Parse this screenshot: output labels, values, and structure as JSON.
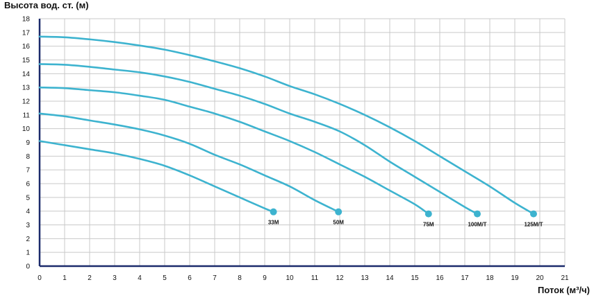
{
  "chart_data": {
    "type": "line",
    "ylabel": "Высота вод. ст. (м)",
    "xlabel": "Поток (м³/ч)",
    "xlim": [
      0,
      21
    ],
    "ylim": [
      0,
      18
    ],
    "x_ticks": [
      0,
      1,
      2,
      3,
      4,
      5,
      6,
      7,
      8,
      9,
      10,
      11,
      12,
      13,
      14,
      15,
      16,
      17,
      18,
      19,
      20,
      21
    ],
    "y_ticks": [
      0,
      1,
      2,
      3,
      4,
      5,
      6,
      7,
      8,
      9,
      10,
      11,
      12,
      13,
      14,
      15,
      16,
      17,
      18
    ],
    "grid": true,
    "colors": {
      "curve": "#3db3cf",
      "axis": "#1b2a6b",
      "grid": "#c9c9c9"
    },
    "series": [
      {
        "name": "33M",
        "x": [
          0,
          1,
          2,
          3,
          4,
          5,
          6,
          7,
          8,
          9,
          9.35
        ],
        "y": [
          9.1,
          8.8,
          8.5,
          8.2,
          7.8,
          7.3,
          6.6,
          5.8,
          5.0,
          4.2,
          3.95
        ]
      },
      {
        "name": "50M",
        "x": [
          0,
          1,
          2,
          3,
          4,
          5,
          6,
          7,
          8,
          9,
          10,
          11,
          11.95
        ],
        "y": [
          11.1,
          10.9,
          10.6,
          10.3,
          9.95,
          9.5,
          8.9,
          8.1,
          7.4,
          6.6,
          5.8,
          4.8,
          3.95
        ]
      },
      {
        "name": "75M",
        "x": [
          0,
          1,
          2,
          3,
          4,
          5,
          6,
          7,
          8,
          9,
          10,
          11,
          12,
          13,
          14,
          15,
          15.55
        ],
        "y": [
          13.0,
          12.95,
          12.8,
          12.65,
          12.4,
          12.1,
          11.6,
          11.1,
          10.5,
          9.8,
          9.1,
          8.3,
          7.4,
          6.5,
          5.5,
          4.5,
          3.8
        ]
      },
      {
        "name": "100M/T",
        "x": [
          0,
          1,
          2,
          3,
          4,
          5,
          6,
          7,
          8,
          9,
          10,
          11,
          12,
          13,
          14,
          15,
          16,
          17,
          17.5
        ],
        "y": [
          14.7,
          14.65,
          14.5,
          14.3,
          14.1,
          13.8,
          13.4,
          12.9,
          12.4,
          11.8,
          11.1,
          10.5,
          9.8,
          8.8,
          7.6,
          6.5,
          5.4,
          4.3,
          3.8
        ]
      },
      {
        "name": "125M/T",
        "x": [
          0,
          1,
          2,
          3,
          4,
          5,
          6,
          7,
          8,
          9,
          10,
          11,
          12,
          13,
          14,
          15,
          16,
          17,
          18,
          19,
          19.75
        ],
        "y": [
          16.7,
          16.65,
          16.5,
          16.3,
          16.05,
          15.75,
          15.35,
          14.9,
          14.4,
          13.8,
          13.1,
          12.5,
          11.8,
          11.0,
          10.1,
          9.1,
          8.0,
          6.9,
          5.8,
          4.6,
          3.8
        ]
      }
    ]
  }
}
